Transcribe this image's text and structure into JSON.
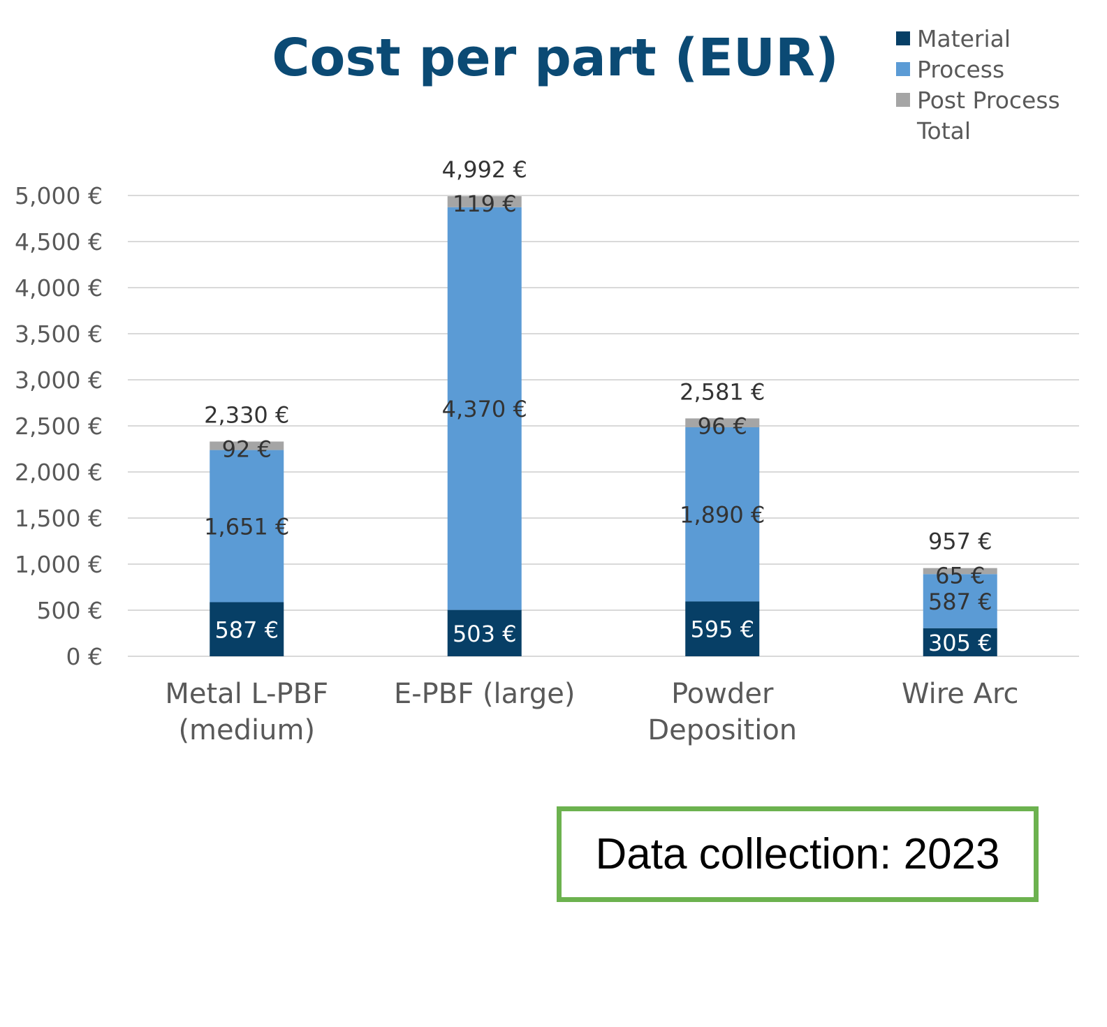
{
  "chart_data": {
    "type": "bar",
    "stacked": true,
    "title": "Cost per part (EUR)",
    "categories": [
      [
        "Metal L-PBF",
        "(medium)"
      ],
      [
        "E-PBF (large)"
      ],
      [
        "Powder",
        "Deposition"
      ],
      [
        "Wire Arc"
      ]
    ],
    "series": [
      {
        "name": "Material",
        "color": "#073f66",
        "values": [
          587,
          503,
          595,
          305
        ],
        "labels": [
          "587 €",
          "503 €",
          "595 €",
          "305 €"
        ]
      },
      {
        "name": "Process",
        "color": "#5b9bd5",
        "values": [
          1651,
          4370,
          1890,
          587
        ],
        "labels": [
          "1,651 €",
          "4,370 €",
          "1,890 €",
          "587 €"
        ]
      },
      {
        "name": "Post Process",
        "color": "#a5a5a5",
        "values": [
          92,
          119,
          96,
          65
        ],
        "labels": [
          "92 €",
          "119 €",
          "96 €",
          "65 €"
        ]
      },
      {
        "name": "Total",
        "values": [
          2330,
          4992,
          2581,
          957
        ],
        "labels": [
          "2,330 €",
          "4,992 €",
          "2,581 €",
          "957 €"
        ]
      }
    ],
    "yaxis": {
      "ticks": [
        0,
        500,
        1000,
        1500,
        2000,
        2500,
        3000,
        3500,
        4000,
        4500,
        5000
      ],
      "tick_labels": [
        "0 €",
        "500 €",
        "1,000 €",
        "1,500 €",
        "2,000 €",
        "2,500 €",
        "3,000 €",
        "3,500 €",
        "4,000 €",
        "4,500 €",
        "5,000 €"
      ],
      "ylim": [
        0,
        5000
      ]
    },
    "grid": true,
    "legend_position": "top-right",
    "colors": {
      "title": "#0b4a74",
      "axis_text": "#595959",
      "label_dark": "#333333",
      "label_light": "#ffffff",
      "grid": "#d9d9d9"
    }
  },
  "note": {
    "text": "Data collection: 2023",
    "border_color": "#6cb24f"
  }
}
